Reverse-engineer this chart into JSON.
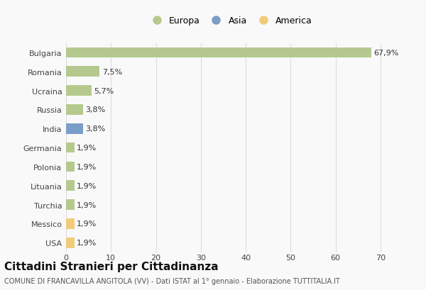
{
  "categories": [
    "Bulgaria",
    "Romania",
    "Ucraina",
    "Russia",
    "India",
    "Germania",
    "Polonia",
    "Lituania",
    "Turchia",
    "Messico",
    "USA"
  ],
  "values": [
    67.9,
    7.5,
    5.7,
    3.8,
    3.8,
    1.9,
    1.9,
    1.9,
    1.9,
    1.9,
    1.9
  ],
  "labels": [
    "67,9%",
    "7,5%",
    "5,7%",
    "3,8%",
    "3,8%",
    "1,9%",
    "1,9%",
    "1,9%",
    "1,9%",
    "1,9%",
    "1,9%"
  ],
  "colors": [
    "#b5c98e",
    "#b5c98e",
    "#b5c98e",
    "#b5c98e",
    "#7b9ec9",
    "#b5c98e",
    "#b5c98e",
    "#b5c98e",
    "#b5c98e",
    "#f0cc7a",
    "#f0cc7a"
  ],
  "legend_labels": [
    "Europa",
    "Asia",
    "America"
  ],
  "legend_colors": [
    "#b5c98e",
    "#7b9ec9",
    "#f0cc7a"
  ],
  "title": "Cittadini Stranieri per Cittadinanza",
  "subtitle": "COMUNE DI FRANCAVILLA ANGITOLA (VV) - Dati ISTAT al 1° gennaio - Elaborazione TUTTITALIA.IT",
  "xlim": [
    0,
    73
  ],
  "xticks": [
    0,
    10,
    20,
    30,
    40,
    50,
    60,
    70
  ],
  "background_color": "#f9f9f9",
  "grid_color": "#dddddd",
  "title_fontsize": 11,
  "subtitle_fontsize": 7,
  "label_fontsize": 8,
  "tick_fontsize": 8,
  "legend_fontsize": 9
}
